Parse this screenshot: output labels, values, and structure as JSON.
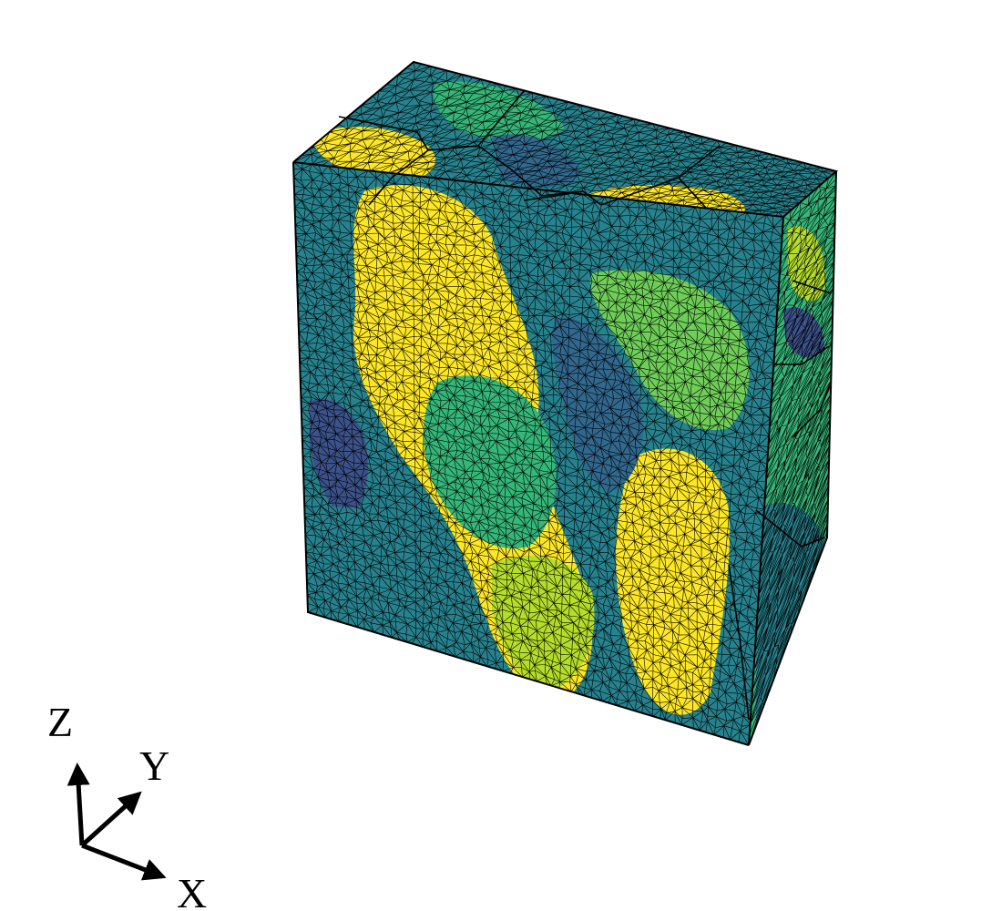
{
  "palette": {
    "dark": "#3b528b",
    "deep": "#31688e",
    "teal": "#26828e",
    "green": "#35b779",
    "lime": "#6ece58",
    "yellow": "#fde725",
    "yellow_green": "#b5de2b",
    "edge": "#000000"
  },
  "axes_triad": {
    "z_label": "Z",
    "y_label": "Y",
    "x_label": "X"
  }
}
